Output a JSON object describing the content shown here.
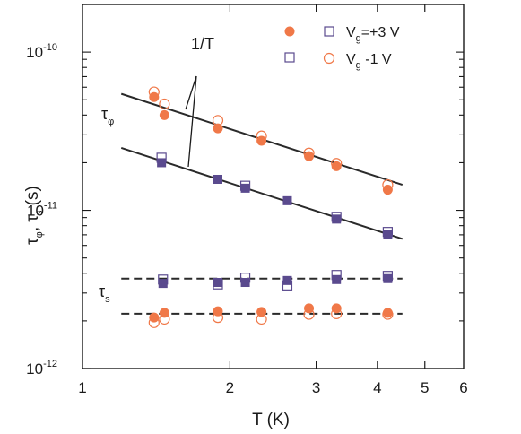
{
  "chart_data": {
    "type": "scatter",
    "xlabel": "T (K)",
    "ylabel": "τ_φ, τ_s (s)",
    "xscale": "log",
    "yscale": "log",
    "xlim": [
      1,
      6
    ],
    "ylim": [
      1e-12,
      2e-10
    ],
    "x_ticks": [
      1,
      2,
      3,
      4,
      5,
      6
    ],
    "x_tick_labels": [
      "1",
      "2",
      "3",
      "4",
      "5",
      "6"
    ],
    "y_ticks": [
      1e-12,
      1e-11,
      1e-10
    ],
    "y_tick_labels": [
      {
        "base": "10",
        "exp": "-12"
      },
      {
        "base": "10",
        "exp": "-11"
      },
      {
        "base": "10",
        "exp": "-10"
      }
    ],
    "annotations": {
      "slope_label": "1/T",
      "tau_phi": {
        "base": "τ",
        "sub": "φ"
      },
      "tau_s": {
        "base": "τ",
        "sub": "s"
      }
    },
    "legend": {
      "placement": "top-right",
      "entries": [
        {
          "base": "V",
          "sub": "g",
          "rest": "=+3 V"
        },
        {
          "base": "V",
          "sub": "g",
          "rest": " -1 V"
        }
      ]
    },
    "colors": {
      "orange": "#f07848",
      "purple": "#5a4a8e",
      "line": "#2a2a2a"
    },
    "series": [
      {
        "quantity": "tau_phi",
        "marker": "filled-circle",
        "color": "#f07848",
        "x": [
          1.4,
          1.47,
          1.89,
          2.32,
          2.9,
          3.3,
          4.2
        ],
        "y": [
          5.2e-11,
          4e-11,
          3.3e-11,
          2.75e-11,
          2.2e-11,
          1.9e-11,
          1.35e-11
        ]
      },
      {
        "quantity": "tau_phi",
        "marker": "open-circle",
        "color": "#f07848",
        "x": [
          1.4,
          1.47,
          1.89,
          2.32,
          2.9,
          3.3,
          4.2
        ],
        "y": [
          5.6e-11,
          4.7e-11,
          3.7e-11,
          2.95e-11,
          2.3e-11,
          1.98e-11,
          1.45e-11
        ]
      },
      {
        "quantity": "tau_phi",
        "marker": "filled-square",
        "color": "#5a4a8e",
        "x": [
          1.45,
          1.89,
          2.15,
          2.62,
          3.3,
          4.2
        ],
        "y": [
          2e-11,
          1.57e-11,
          1.38e-11,
          1.15e-11,
          8.8e-12,
          7e-12
        ]
      },
      {
        "quantity": "tau_phi",
        "marker": "open-square",
        "color": "#5a4a8e",
        "x": [
          1.45,
          2.15,
          3.3,
          4.2
        ],
        "y": [
          2.15e-11,
          1.43e-11,
          9.1e-12,
          7.3e-12
        ]
      },
      {
        "quantity": "tau_s",
        "marker": "filled-square",
        "color": "#5a4a8e",
        "x": [
          1.46,
          1.89,
          2.15,
          2.62,
          3.3,
          4.2
        ],
        "y": [
          3.45e-12,
          3.5e-12,
          3.5e-12,
          3.6e-12,
          3.65e-12,
          3.7e-12
        ]
      },
      {
        "quantity": "tau_s",
        "marker": "open-square",
        "color": "#5a4a8e",
        "x": [
          1.46,
          1.89,
          2.15,
          2.62,
          3.3,
          4.2
        ],
        "y": [
          3.65e-12,
          3.4e-12,
          3.75e-12,
          3.35e-12,
          3.9e-12,
          3.85e-12
        ]
      },
      {
        "quantity": "tau_s",
        "marker": "filled-circle",
        "color": "#f07848",
        "x": [
          1.4,
          1.47,
          1.89,
          2.32,
          2.9,
          3.3,
          4.2
        ],
        "y": [
          2.1e-12,
          2.25e-12,
          2.3e-12,
          2.28e-12,
          2.4e-12,
          2.4e-12,
          2.25e-12
        ]
      },
      {
        "quantity": "tau_s",
        "marker": "open-circle",
        "color": "#f07848",
        "x": [
          1.4,
          1.47,
          1.89,
          2.32,
          2.9,
          3.3,
          4.2
        ],
        "y": [
          1.95e-12,
          2.05e-12,
          2.1e-12,
          2.05e-12,
          2.2e-12,
          2.22e-12,
          2.2e-12
        ]
      }
    ],
    "fit_lines": [
      {
        "name": "tau_phi orange fit",
        "style": "solid",
        "x": [
          1.2,
          4.5
        ],
        "y": [
          5.45e-11,
          1.45e-11
        ]
      },
      {
        "name": "tau_phi purple fit",
        "style": "solid",
        "x": [
          1.2,
          4.5
        ],
        "y": [
          2.48e-11,
          6.6e-12
        ]
      },
      {
        "name": "tau_s purple level",
        "style": "dashed",
        "x": [
          1.2,
          4.5
        ],
        "y": [
          3.7e-12,
          3.7e-12
        ]
      },
      {
        "name": "tau_s orange level",
        "style": "dashed",
        "x": [
          1.2,
          4.5
        ],
        "y": [
          2.22e-12,
          2.22e-12
        ]
      }
    ]
  }
}
